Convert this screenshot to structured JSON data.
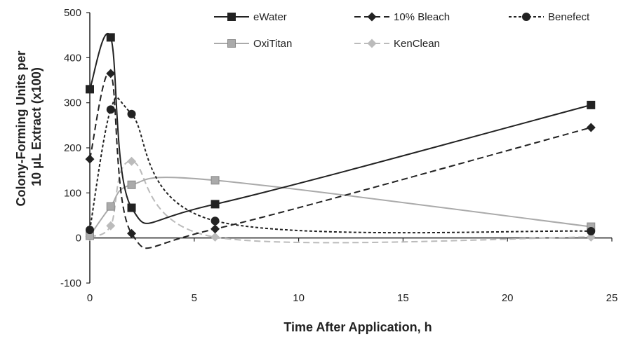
{
  "chart_data": {
    "type": "line",
    "xlabel": "Time After Application, h",
    "ylabel": [
      "Colony-Forming Units per",
      "10 μL Extract (x100)"
    ],
    "xlim": [
      0,
      25
    ],
    "ylim": [
      -100,
      500
    ],
    "x_ticks": [
      0,
      5,
      10,
      15,
      20,
      25
    ],
    "y_ticks": [
      -100,
      0,
      100,
      200,
      300,
      400,
      500
    ],
    "grid": false,
    "legend_position": "top-right",
    "x": [
      0,
      1,
      2,
      6,
      24
    ],
    "series": [
      {
        "name": "eWater",
        "values": [
          330,
          445,
          67,
          75,
          295
        ],
        "color": "#222222",
        "marker": "square",
        "dash": "solid"
      },
      {
        "name": "10% Bleach",
        "values": [
          175,
          365,
          10,
          20,
          245
        ],
        "color": "#222222",
        "marker": "diamond",
        "dash": "dashed"
      },
      {
        "name": "Benefect",
        "values": [
          18,
          285,
          275,
          38,
          15
        ],
        "color": "#222222",
        "marker": "circle",
        "dash": "dotted"
      },
      {
        "name": "OxiTitan",
        "values": [
          5,
          70,
          118,
          128,
          25
        ],
        "color": "#aaaaaa",
        "marker": "square",
        "dash": "solid"
      },
      {
        "name": "KenClean",
        "values": [
          3,
          27,
          170,
          2,
          2
        ],
        "color": "#bbbbbb",
        "marker": "diamond",
        "dash": "dashed"
      }
    ]
  }
}
